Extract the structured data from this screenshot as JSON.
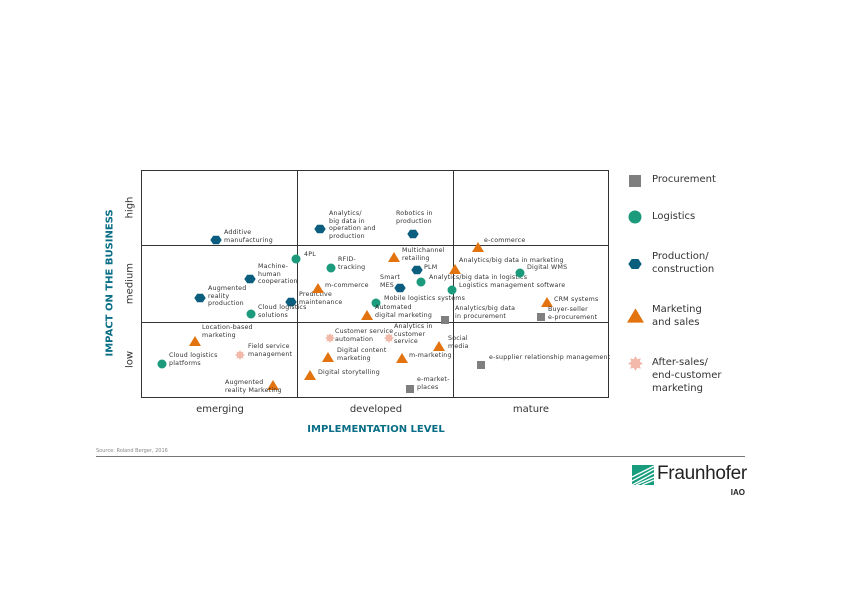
{
  "axes": {
    "y_title": "IMPACT ON THE BUSINESS",
    "x_title": "IMPLEMENTATION LEVEL",
    "y_levels": [
      "low",
      "medium",
      "high"
    ],
    "x_levels": [
      "emerging",
      "developed",
      "mature"
    ]
  },
  "colors": {
    "procurement": "#7f7f7f",
    "logistics": "#1b9a7c",
    "production": "#0b5e7e",
    "marketing": "#e2730f",
    "aftersales": "#f2b9a9",
    "axis_title": "#0a6e86"
  },
  "legend": [
    {
      "key": "procurement",
      "shape": "square",
      "label": "Procurement"
    },
    {
      "key": "logistics",
      "shape": "circle",
      "label": "Logistics"
    },
    {
      "key": "production",
      "shape": "hexagon",
      "label": "Production/\nconstruction"
    },
    {
      "key": "marketing",
      "shape": "triangle",
      "label": "Marketing\nand sales"
    },
    {
      "key": "aftersales",
      "shape": "star",
      "label": "After-sales/\nend-customer\nmarketing"
    }
  ],
  "items": [
    {
      "label": "Additive\nmanufacturing",
      "category": "production",
      "implementation": "emerging",
      "impact": "high"
    },
    {
      "label": "Machine-\nhuman\ncooperation",
      "category": "production",
      "implementation": "emerging",
      "impact": "medium"
    },
    {
      "label": "Augmented\nreality\nproduction",
      "category": "production",
      "implementation": "emerging",
      "impact": "medium"
    },
    {
      "label": "Predictive\nmaintenance",
      "category": "production",
      "implementation": "emerging",
      "impact": "medium"
    },
    {
      "label": "Analytics/\nbig data in\noperation and\nproduction",
      "category": "production",
      "implementation": "developed",
      "impact": "high"
    },
    {
      "label": "Robotics in\nproduction",
      "category": "production",
      "implementation": "developed",
      "impact": "high"
    },
    {
      "label": "PLM",
      "category": "production",
      "implementation": "developed",
      "impact": "medium"
    },
    {
      "label": "Smart\nMES",
      "category": "production",
      "implementation": "developed",
      "impact": "medium"
    },
    {
      "label": "4PL",
      "category": "logistics",
      "implementation": "developed",
      "impact": "medium"
    },
    {
      "label": "RFID-\ntracking",
      "category": "logistics",
      "implementation": "developed",
      "impact": "medium"
    },
    {
      "label": "Mobile logistics systems",
      "category": "logistics",
      "implementation": "developed",
      "impact": "medium"
    },
    {
      "label": "Analytics/big data in logistics",
      "category": "logistics",
      "implementation": "developed",
      "impact": "medium"
    },
    {
      "label": "Logistics management software",
      "category": "logistics",
      "implementation": "mature",
      "impact": "medium"
    },
    {
      "label": "Digital WMS",
      "category": "logistics",
      "implementation": "mature",
      "impact": "medium"
    },
    {
      "label": "Cloud logistics\nsolutions",
      "category": "logistics",
      "implementation": "emerging",
      "impact": "medium"
    },
    {
      "label": "Cloud logistics\nplatforms",
      "category": "logistics",
      "implementation": "emerging",
      "impact": "low"
    },
    {
      "label": "e-commerce",
      "category": "marketing",
      "implementation": "mature",
      "impact": "high"
    },
    {
      "label": "Analytics/big data in marketing",
      "category": "marketing",
      "implementation": "mature",
      "impact": "medium"
    },
    {
      "label": "CRM systems",
      "category": "marketing",
      "implementation": "mature",
      "impact": "medium"
    },
    {
      "label": "Multichannel\nretailing",
      "category": "marketing",
      "implementation": "developed",
      "impact": "medium"
    },
    {
      "label": "m-commerce",
      "category": "marketing",
      "implementation": "developed",
      "impact": "medium"
    },
    {
      "label": "Automated\ndigital marketing",
      "category": "marketing",
      "implementation": "developed",
      "impact": "medium"
    },
    {
      "label": "Location-based\nmarketing",
      "category": "marketing",
      "implementation": "emerging",
      "impact": "low"
    },
    {
      "label": "Augmented\nreality Marketing",
      "category": "marketing",
      "implementation": "emerging",
      "impact": "low"
    },
    {
      "label": "Digital content\nmarketing",
      "category": "marketing",
      "implementation": "developed",
      "impact": "low"
    },
    {
      "label": "Digital storytelling",
      "category": "marketing",
      "implementation": "developed",
      "impact": "low"
    },
    {
      "label": "m-marketing",
      "category": "marketing",
      "implementation": "developed",
      "impact": "low"
    },
    {
      "label": "Social\nmedia",
      "category": "marketing",
      "implementation": "developed",
      "impact": "low"
    },
    {
      "label": "Field service\nmanagement",
      "category": "aftersales",
      "implementation": "emerging",
      "impact": "low"
    },
    {
      "label": "Customer service\nautomation",
      "category": "aftersales",
      "implementation": "developed",
      "impact": "low"
    },
    {
      "label": "Analytics in\ncustomer\nservice",
      "category": "aftersales",
      "implementation": "developed",
      "impact": "low"
    },
    {
      "label": "Analytics/big data\nin procurement",
      "category": "procurement",
      "implementation": "developed",
      "impact": "medium"
    },
    {
      "label": "Buyer-seller\ne-procurement",
      "category": "procurement",
      "implementation": "mature",
      "impact": "medium"
    },
    {
      "label": "e-supplier relationship management",
      "category": "procurement",
      "implementation": "mature",
      "impact": "low"
    },
    {
      "label": "e-market-\nplaces",
      "category": "procurement",
      "implementation": "developed",
      "impact": "low"
    }
  ],
  "footer": {
    "source": "Source: Roland Berger, 2016",
    "logo_text": "Fraunhofer",
    "logo_sub": "IAO"
  }
}
